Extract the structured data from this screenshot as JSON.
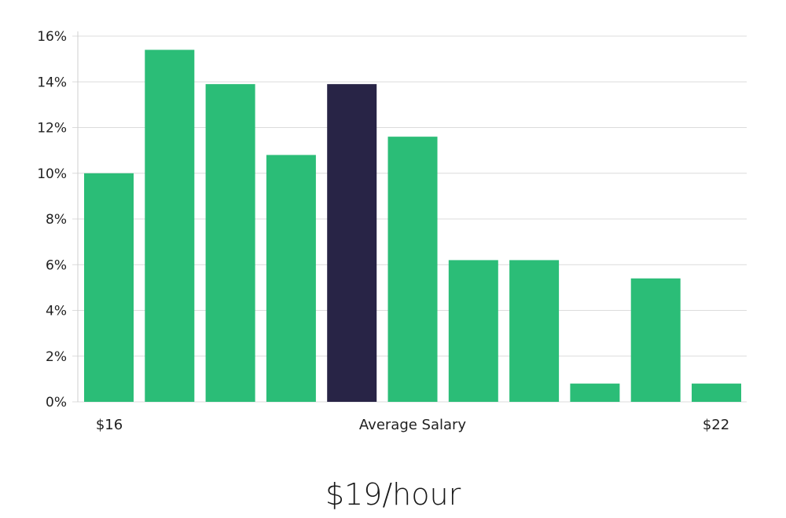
{
  "chart_data": {
    "type": "bar",
    "values": [
      10.0,
      15.4,
      13.9,
      10.8,
      13.9,
      11.6,
      6.2,
      6.2,
      0.8,
      5.4,
      0.8
    ],
    "highlight_index": 4,
    "ylim": [
      0,
      16
    ],
    "yticks": [
      "0%",
      "2%",
      "4%",
      "6%",
      "8%",
      "10%",
      "12%",
      "14%",
      "16%"
    ],
    "x_labels": {
      "start": "$16",
      "middle": "Average Salary",
      "end": "$22"
    },
    "colors": {
      "bar": "#2bbd77",
      "highlight": "#282446",
      "grid": "#dcdcdc"
    },
    "grid": true
  },
  "average_salary": "$19/hour"
}
